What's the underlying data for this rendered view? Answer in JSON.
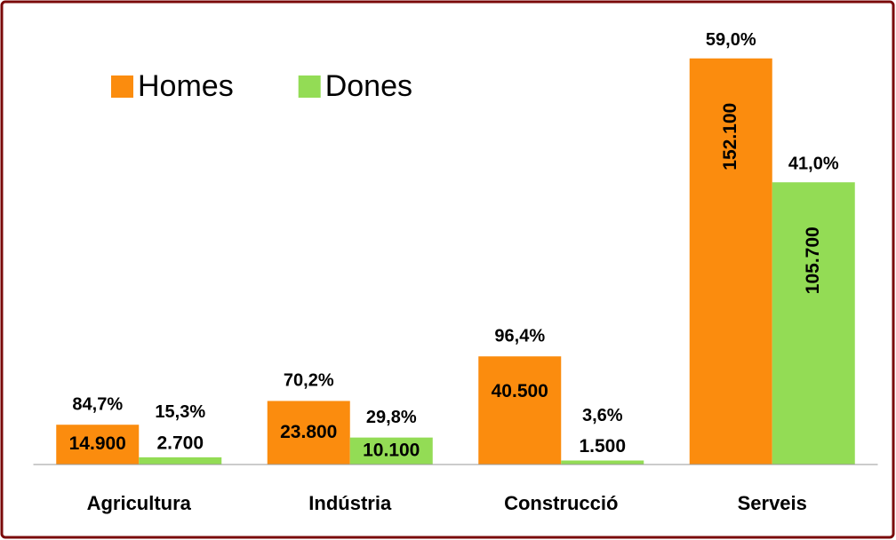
{
  "chart_data": {
    "type": "bar",
    "categories": [
      "Agricultura",
      "Indústria",
      "Construcció",
      "Serveis"
    ],
    "series": [
      {
        "name": "Homes",
        "color": "#fb8c0e",
        "values": [
          14900,
          23800,
          40500,
          152100
        ],
        "value_labels": [
          "14.900",
          "23.800",
          "40.500",
          "152.100"
        ],
        "shares": [
          84.7,
          70.2,
          96.4,
          59.0
        ],
        "share_labels": [
          "84,7%",
          "70,2%",
          "96,4%",
          "59,0%"
        ]
      },
      {
        "name": "Dones",
        "color": "#93dc55",
        "values": [
          2700,
          10100,
          1500,
          105700
        ],
        "value_labels": [
          "2.700",
          "10.100",
          "1.500",
          "105.700"
        ],
        "shares": [
          15.3,
          29.8,
          3.6,
          41.0
        ],
        "share_labels": [
          "15,3%",
          "29,8%",
          "3,6%",
          "41,0%"
        ]
      }
    ],
    "ylim": [
      0,
      160000
    ],
    "legend": "top-left"
  }
}
